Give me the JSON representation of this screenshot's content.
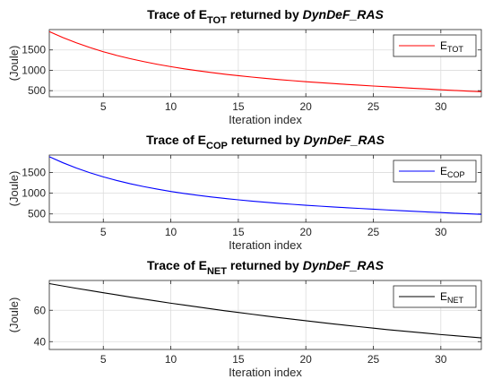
{
  "chart_data": [
    {
      "type": "line",
      "title": {
        "pre": "Trace of E",
        "sub": "TOT",
        "mid": " returned by ",
        "it": "DynDeF_RAS"
      },
      "xlabel": "Iteration index",
      "ylabel": "(Joule)",
      "xlim": [
        1,
        33
      ],
      "ylim": [
        350,
        2000
      ],
      "xticks": [
        5,
        10,
        15,
        20,
        25,
        30
      ],
      "yticks": [
        500,
        1000,
        1500
      ],
      "grid": true,
      "legend_position": "top-right",
      "series": [
        {
          "name": {
            "base": "E",
            "sub": "TOT"
          },
          "color": "#ff0000",
          "x": [
            1,
            2,
            3,
            4,
            5,
            6,
            7,
            8,
            9,
            10,
            11,
            12,
            13,
            14,
            15,
            16,
            17,
            18,
            19,
            20,
            21,
            22,
            23,
            24,
            25,
            26,
            27,
            28,
            29,
            30,
            31,
            32,
            33
          ],
          "y": [
            1950,
            1805,
            1675,
            1560,
            1455,
            1365,
            1285,
            1213,
            1148,
            1090,
            1037,
            989,
            945,
            904,
            868,
            834,
            802,
            773,
            746,
            721,
            697,
            675,
            654,
            634,
            614,
            595,
            576,
            558,
            540,
            523,
            506,
            490,
            474
          ]
        }
      ]
    },
    {
      "type": "line",
      "title": {
        "pre": "Trace of E",
        "sub": "COP",
        "mid": " returned by ",
        "it": "DynDeF_RAS"
      },
      "xlabel": "Iteration index",
      "ylabel": "(Joule)",
      "xlim": [
        1,
        33
      ],
      "ylim": [
        300,
        1920
      ],
      "xticks": [
        5,
        10,
        15,
        20,
        25,
        30
      ],
      "yticks": [
        500,
        1000,
        1500
      ],
      "grid": true,
      "legend_position": "top-right",
      "series": [
        {
          "name": {
            "base": "E",
            "sub": "COP"
          },
          "color": "#0000ff",
          "x": [
            1,
            2,
            3,
            4,
            5,
            6,
            7,
            8,
            9,
            10,
            11,
            12,
            13,
            14,
            15,
            16,
            17,
            18,
            19,
            20,
            21,
            22,
            23,
            24,
            25,
            26,
            27,
            28,
            29,
            30,
            31,
            32,
            33
          ],
          "y": [
            1880,
            1735,
            1607,
            1494,
            1394,
            1306,
            1228,
            1159,
            1097,
            1042,
            993,
            949,
            909,
            873,
            840,
            810,
            782,
            756,
            732,
            710,
            689,
            669,
            650,
            632,
            614,
            597,
            580,
            564,
            548,
            533,
            518,
            504,
            490
          ]
        }
      ]
    },
    {
      "type": "line",
      "title": {
        "pre": "Trace of E",
        "sub": "NET",
        "mid": " returned by ",
        "it": "DynDeF_RAS"
      },
      "xlabel": "Iteration index",
      "ylabel": "(Joule)",
      "xlim": [
        1,
        33
      ],
      "ylim": [
        35,
        79
      ],
      "xticks": [
        5,
        10,
        15,
        20,
        25,
        30
      ],
      "yticks": [
        40,
        60
      ],
      "grid": true,
      "legend_position": "top-right",
      "series": [
        {
          "name": {
            "base": "E",
            "sub": "NET"
          },
          "color": "#000000",
          "x": [
            1,
            2,
            3,
            4,
            5,
            6,
            7,
            8,
            9,
            10,
            11,
            12,
            13,
            14,
            15,
            16,
            17,
            18,
            19,
            20,
            21,
            22,
            23,
            24,
            25,
            26,
            27,
            28,
            29,
            30,
            31,
            32,
            33
          ],
          "y": [
            77,
            75.5,
            74,
            72.6,
            71.2,
            69.8,
            68.4,
            67.1,
            65.8,
            64.5,
            63.3,
            62.1,
            60.9,
            59.7,
            58.6,
            57.5,
            56.4,
            55.3,
            54.3,
            53.3,
            52.3,
            51.3,
            50.4,
            49.5,
            48.6,
            47.7,
            46.9,
            46.1,
            45.3,
            44.5,
            43.8,
            43.1,
            42.4
          ]
        }
      ]
    }
  ]
}
